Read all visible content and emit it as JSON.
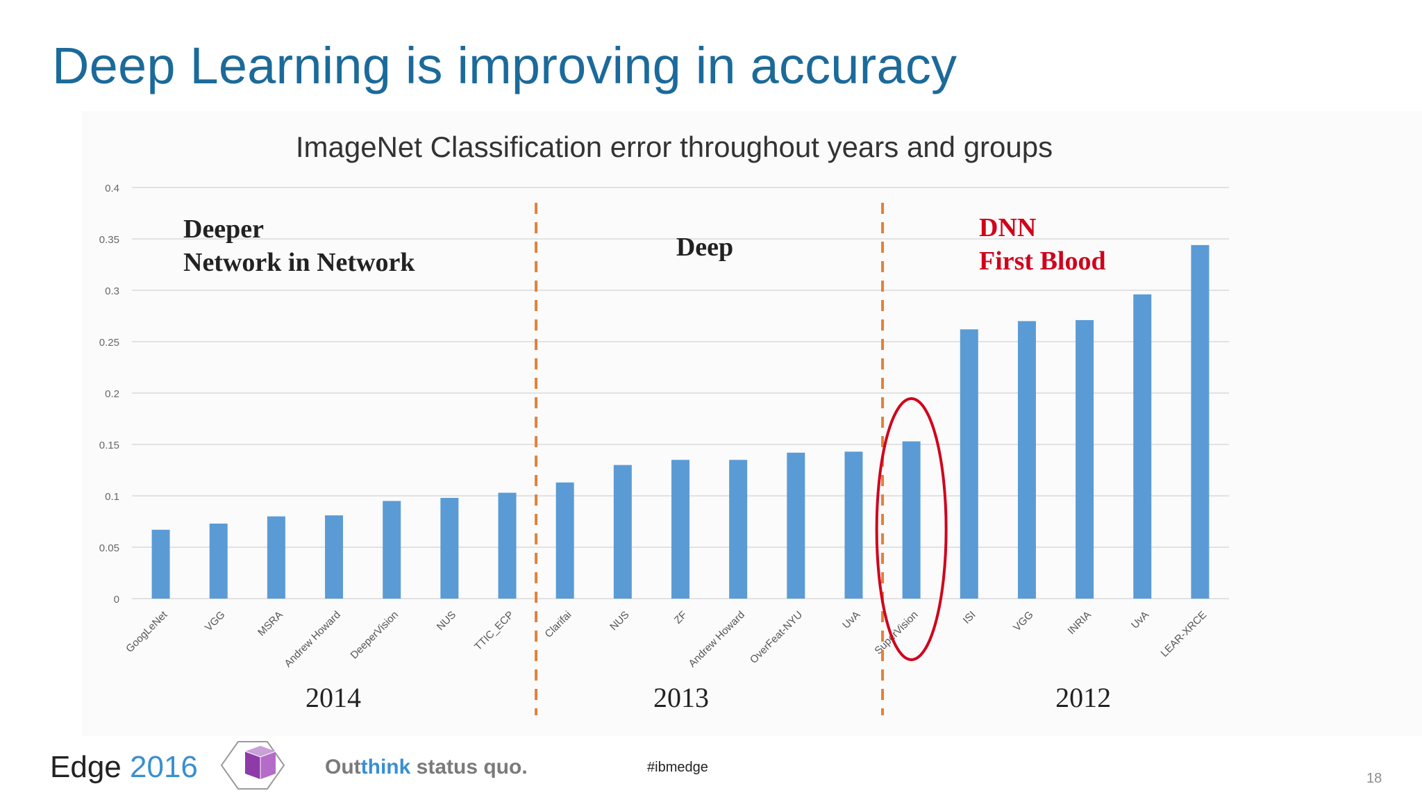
{
  "slide": {
    "title": "Deep Learning is improving in accuracy",
    "page_number": "18"
  },
  "footer": {
    "brand": "Edge",
    "brand_year": "2016",
    "tagline_prefix": "Out",
    "tagline_accent": "think",
    "tagline_rest": " status quo.",
    "hashtag": "#ibmedge"
  },
  "colors": {
    "title": "#1b6a9a",
    "bar": "#5b9bd5",
    "divider": "#e0813a",
    "highlight": "#d0021b"
  },
  "chart_data": {
    "type": "bar",
    "title": "ImageNet Classification error throughout years and groups",
    "xlabel": "",
    "ylabel": "",
    "ylim": [
      0,
      0.4
    ],
    "yticks": [
      "0",
      "0.05",
      "0.1",
      "0.15",
      "0.2",
      "0.25",
      "0.3",
      "0.35",
      "0.4"
    ],
    "grid": true,
    "categories": [
      "GoogLeNet",
      "VGG",
      "MSRA",
      "Andrew Howard",
      "DeeperVision",
      "NUS",
      "TTIC_ECP",
      "Clarifai",
      "NUS",
      "ZF",
      "Andrew Howard",
      "OverFeat-NYU",
      "UvA",
      "SuperVision",
      "ISI",
      "VGG",
      "INRIA",
      "UvA",
      "LEAR-XRCE"
    ],
    "values": [
      0.067,
      0.073,
      0.08,
      0.081,
      0.095,
      0.098,
      0.103,
      0.113,
      0.13,
      0.135,
      0.135,
      0.142,
      0.143,
      0.153,
      0.262,
      0.27,
      0.271,
      0.296,
      0.344
    ],
    "groups": [
      {
        "year": "2014",
        "label_line1": "Deeper",
        "label_line2": "Network in Network"
      },
      {
        "year": "2013",
        "label_line1": "Deep",
        "label_line2": ""
      },
      {
        "year": "2012",
        "label_line1": "DNN",
        "label_line2": "First Blood"
      }
    ],
    "highlighted_category": "SuperVision"
  }
}
